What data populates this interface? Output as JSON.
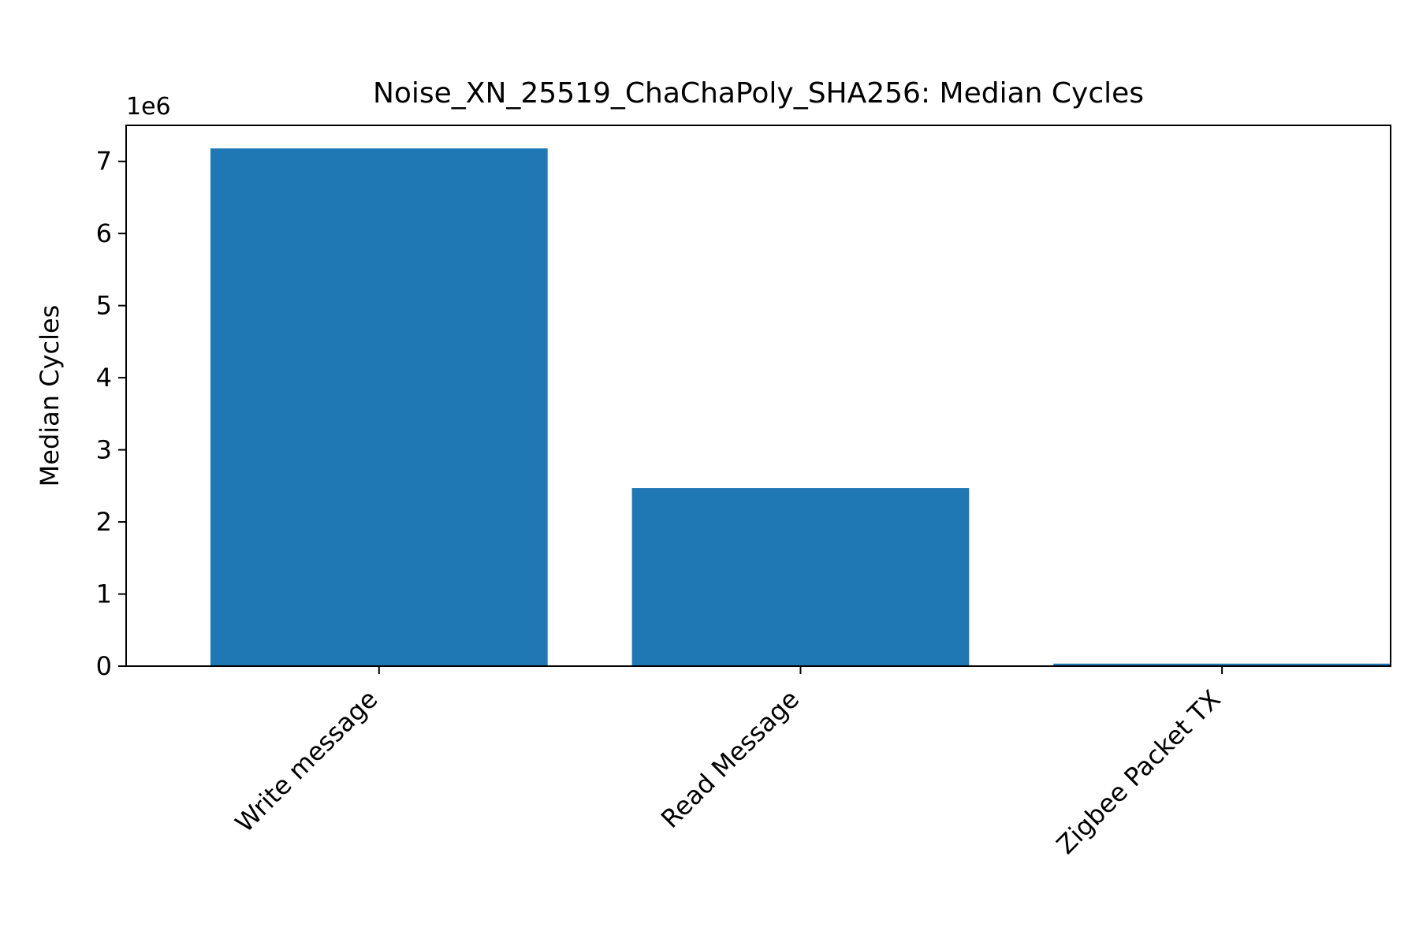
{
  "chart_data": {
    "type": "bar",
    "title": "Noise_XN_25519_ChaChaPoly_SHA256: Median Cycles",
    "xlabel": "",
    "ylabel": "Median Cycles",
    "y_offset_label": "1e6",
    "categories": [
      "Write message",
      "Read Message",
      "Zigbee Packet TX"
    ],
    "values": [
      7180000,
      2470000,
      35000
    ],
    "ylim": [
      0,
      7500000
    ],
    "yticks": [
      0,
      1,
      2,
      3,
      4,
      5,
      6,
      7
    ],
    "ytick_multiplier": 1000000,
    "grid": false,
    "bar_color": "#1f77b4"
  }
}
